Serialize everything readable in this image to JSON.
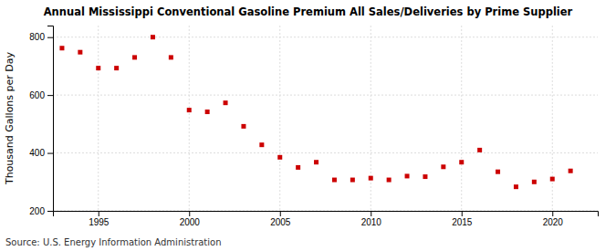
{
  "chart_data": {
    "type": "scatter",
    "title": "Annual Mississippi Conventional Gasoline Premium All Sales/Deliveries by Prime Supplier",
    "ylabel": "Thousand Gallons per Day",
    "source": "Source: U.S. Energy Information Administration",
    "color": "#cc0000",
    "marker": "square",
    "x": [
      1993,
      1994,
      1995,
      1996,
      1997,
      1998,
      1999,
      2000,
      2001,
      2002,
      2003,
      2004,
      2005,
      2006,
      2007,
      2008,
      2009,
      2010,
      2011,
      2012,
      2013,
      2014,
      2015,
      2016,
      2017,
      2018,
      2019,
      2020,
      2021
    ],
    "values": [
      762,
      748,
      693,
      693,
      730,
      800,
      730,
      548,
      542,
      573,
      492,
      428,
      385,
      350,
      368,
      307,
      307,
      313,
      307,
      320,
      318,
      352,
      368,
      410,
      335,
      283,
      300,
      310,
      338
    ],
    "xlim": [
      1992.5,
      2022.5
    ],
    "ylim": [
      200,
      840
    ],
    "xticks": [
      1995,
      2000,
      2005,
      2010,
      2015,
      2020
    ],
    "yticks": [
      200,
      400,
      600,
      800
    ],
    "grid": true
  }
}
